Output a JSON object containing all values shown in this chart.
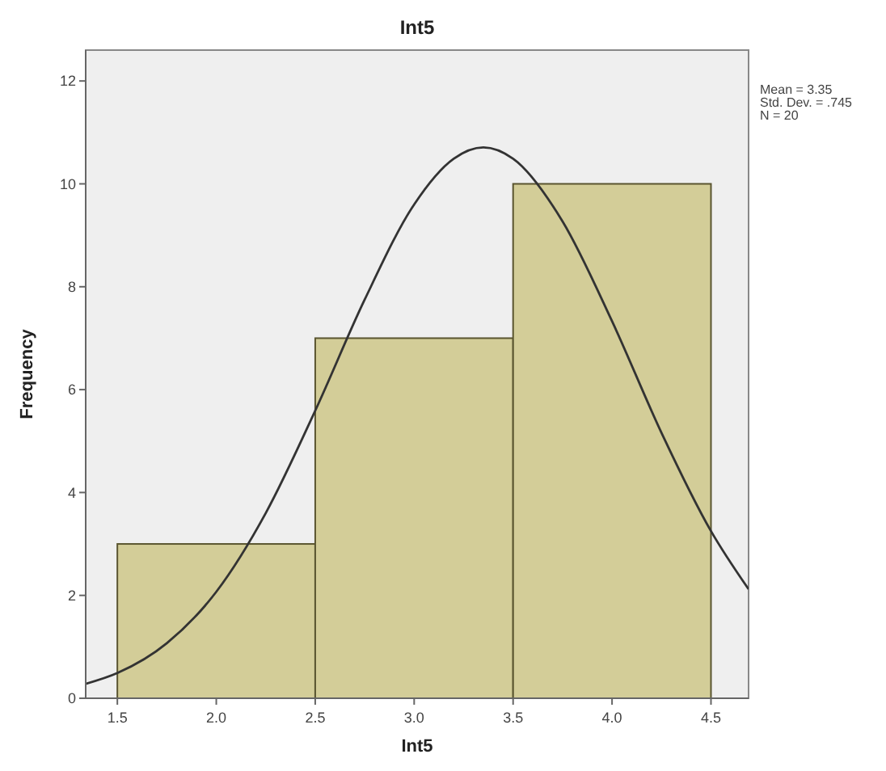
{
  "chart_data": {
    "type": "histogram",
    "title": "Int5",
    "xlabel": "Int5",
    "ylabel": "Frequency",
    "bins": [
      1.5,
      2.5,
      3.5,
      4.5
    ],
    "series": [
      {
        "color": "#d3cd98",
        "values": [
          3,
          7,
          10
        ]
      },
      {
        "type": "line",
        "color": "#333333",
        "x": [
          1.34,
          1.5,
          1.75,
          2.0,
          2.25,
          2.5,
          2.75,
          3.0,
          3.2,
          3.35,
          3.5,
          3.75,
          4.0,
          4.25,
          4.5,
          4.69
        ],
        "values": [
          0.28,
          0.49,
          1.07,
          2.07,
          3.6,
          5.59,
          7.75,
          9.6,
          10.49,
          10.71,
          10.49,
          9.27,
          7.33,
          5.16,
          3.25,
          2.12
        ]
      }
    ],
    "xlim": [
      1.34,
      4.69
    ],
    "ylim": [
      0,
      12.6
    ],
    "xticks": [
      1.5,
      {
        "value": 2,
        "label": "2.0"
      },
      2.5,
      {
        "value": 3,
        "label": "3.0"
      },
      3.5,
      {
        "value": 4,
        "label": "4.0"
      },
      4.5
    ],
    "yticks": [
      0,
      2,
      4,
      6,
      8,
      10,
      12
    ],
    "annotations": [
      "Mean = 3.35",
      "Std. Dev. = .745",
      "N = 20"
    ],
    "grid": false,
    "marker": "none",
    "line_style": "solid"
  }
}
